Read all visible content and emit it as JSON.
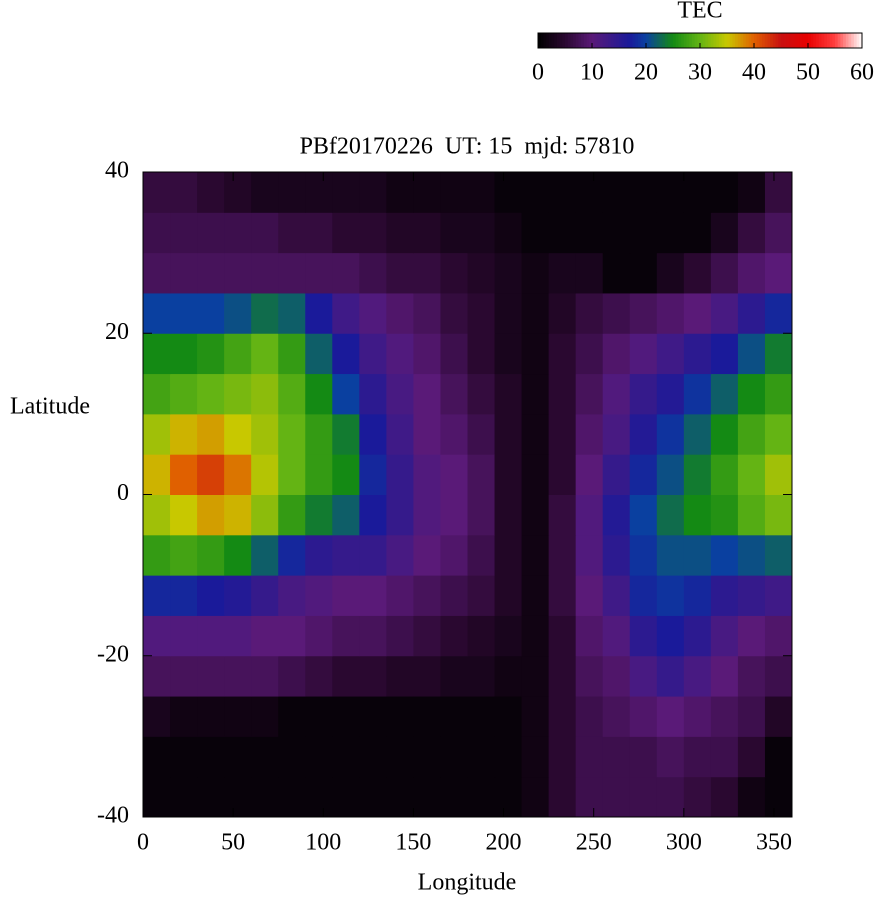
{
  "chart_data": {
    "type": "heatmap",
    "title": "PBf20170226  UT: 15  mjd: 57810",
    "xlabel": "Longitude",
    "ylabel": "Latitude",
    "colorbar_label": "TEC",
    "xlim": [
      0,
      360
    ],
    "xticks": [
      0,
      50,
      100,
      150,
      200,
      250,
      300,
      350
    ],
    "ylim": [
      -40,
      40
    ],
    "yticks": [
      -40,
      -20,
      0,
      20,
      40
    ],
    "cblim": [
      0,
      60
    ],
    "cbticks": [
      0,
      10,
      20,
      30,
      40,
      50,
      60
    ],
    "colormap": [
      {
        "value": 0,
        "color": "#000000"
      },
      {
        "value": 5,
        "color": "#2a0830"
      },
      {
        "value": 10,
        "color": "#5a1a78"
      },
      {
        "value": 17,
        "color": "#1a1a9a"
      },
      {
        "value": 20,
        "color": "#0a40a0"
      },
      {
        "value": 25,
        "color": "#148a14"
      },
      {
        "value": 30,
        "color": "#64b414"
      },
      {
        "value": 35,
        "color": "#c8c800"
      },
      {
        "value": 40,
        "color": "#e06000"
      },
      {
        "value": 45,
        "color": "#c81010"
      },
      {
        "value": 50,
        "color": "#e80000"
      },
      {
        "value": 55,
        "color": "#ff4040"
      },
      {
        "value": 60,
        "color": "#ffffff"
      }
    ],
    "x": [
      7.5,
      22.5,
      37.5,
      52.5,
      67.5,
      82.5,
      97.5,
      112.5,
      127.5,
      142.5,
      157.5,
      172.5,
      187.5,
      202.5,
      217.5,
      232.5,
      247.5,
      262.5,
      277.5,
      292.5,
      307.5,
      322.5,
      337.5,
      352.5
    ],
    "y": [
      -37.5,
      -32.5,
      -27.5,
      -22.5,
      -17.5,
      -12.5,
      -7.5,
      -2.5,
      2.5,
      7.5,
      12.5,
      17.5,
      22.5,
      27.5,
      32.5,
      37.5
    ],
    "values": [
      [
        1,
        1,
        1,
        1,
        1,
        1,
        1,
        1,
        1,
        1,
        1,
        1,
        1,
        1,
        2,
        5,
        7,
        7,
        7,
        7,
        6,
        5,
        2,
        1
      ],
      [
        1,
        1,
        1,
        1,
        1,
        1,
        1,
        1,
        1,
        1,
        1,
        1,
        1,
        1,
        2,
        5,
        7,
        7,
        7,
        8,
        7,
        7,
        5,
        1
      ],
      [
        3,
        2,
        2,
        2,
        2,
        1,
        1,
        1,
        1,
        1,
        1,
        1,
        1,
        1,
        2,
        5,
        7,
        8,
        9,
        10,
        9,
        8,
        7,
        4
      ],
      [
        8,
        8,
        8,
        8,
        8,
        7,
        6,
        5,
        5,
        4,
        4,
        3,
        3,
        2,
        2,
        5,
        8,
        9,
        12,
        14,
        12,
        10,
        8,
        7
      ],
      [
        11,
        11,
        11,
        11,
        10,
        10,
        9,
        8,
        8,
        7,
        6,
        5,
        4,
        3,
        2,
        5,
        9,
        11,
        15,
        17,
        15,
        12,
        10,
        9
      ],
      [
        18,
        18,
        17,
        16,
        14,
        12,
        11,
        10,
        10,
        9,
        8,
        7,
        6,
        4,
        2,
        6,
        10,
        13,
        18,
        19,
        18,
        15,
        14,
        13
      ],
      [
        27,
        28,
        27,
        25,
        22,
        18,
        15,
        14,
        14,
        12,
        10,
        9,
        7,
        4,
        2,
        6,
        11,
        15,
        19,
        21,
        21,
        20,
        21,
        22
      ],
      [
        33,
        35,
        37,
        36,
        32,
        27,
        24,
        22,
        17,
        14,
        11,
        10,
        8,
        4,
        2,
        6,
        11,
        16,
        20,
        23,
        25,
        26,
        29,
        31
      ],
      [
        36,
        40,
        42,
        39,
        34,
        30,
        27,
        25,
        18,
        14,
        11,
        10,
        8,
        4,
        2,
        5,
        10,
        14,
        18,
        21,
        24,
        27,
        30,
        33
      ],
      [
        33,
        36,
        37,
        35,
        33,
        30,
        27,
        24,
        17,
        13,
        10,
        9,
        7,
        4,
        2,
        5,
        9,
        12,
        16,
        19,
        22,
        25,
        28,
        30
      ],
      [
        28,
        29,
        30,
        31,
        32,
        29,
        25,
        20,
        15,
        12,
        10,
        8,
        6,
        4,
        2,
        5,
        8,
        11,
        14,
        16,
        19,
        22,
        25,
        27
      ],
      [
        25,
        25,
        26,
        28,
        30,
        27,
        22,
        17,
        13,
        11,
        9,
        7,
        5,
        3,
        2,
        5,
        7,
        9,
        11,
        13,
        15,
        17,
        21,
        24
      ],
      [
        20,
        20,
        20,
        21,
        23,
        22,
        17,
        13,
        11,
        9,
        8,
        6,
        5,
        3,
        2,
        4,
        6,
        7,
        8,
        9,
        10,
        12,
        15,
        18
      ],
      [
        8,
        8,
        8,
        8,
        8,
        8,
        8,
        8,
        7,
        6,
        6,
        5,
        4,
        3,
        2,
        3,
        3,
        1,
        1,
        3,
        5,
        7,
        9,
        10
      ],
      [
        7,
        7,
        7,
        7,
        7,
        6,
        6,
        5,
        5,
        4,
        4,
        3,
        3,
        2,
        1,
        1,
        1,
        1,
        1,
        1,
        1,
        3,
        6,
        8
      ],
      [
        6,
        6,
        5,
        4,
        3,
        3,
        3,
        3,
        3,
        2,
        2,
        2,
        2,
        1,
        1,
        1,
        1,
        1,
        1,
        1,
        1,
        1,
        2,
        6
      ]
    ]
  }
}
